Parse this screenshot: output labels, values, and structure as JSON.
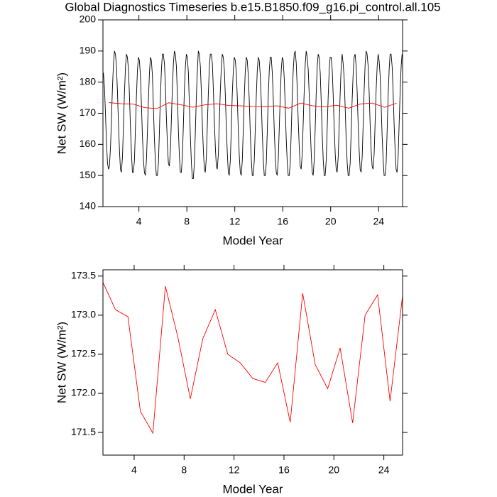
{
  "chart_data": [
    {
      "type": "line",
      "title": "Global Diagnostics Timeseries b.e15.B1850.f09_g16.pi_control.all.105",
      "xlabel": "Model Year",
      "ylabel": "Net SW (W/m²)",
      "xlim": [
        1,
        26
      ],
      "xticks": [
        4,
        8,
        12,
        16,
        20,
        24
      ],
      "ylim": [
        140,
        200
      ],
      "yticks": [
        140,
        150,
        160,
        170,
        180,
        190,
        200
      ],
      "series": [
        {
          "color": "#000000",
          "x": [
            1.04,
            1.13,
            1.21,
            1.29,
            1.38,
            1.46,
            1.54,
            1.63,
            1.71,
            1.79,
            1.88,
            1.96,
            2.04,
            2.13,
            2.21,
            2.29,
            2.38,
            2.46,
            2.54,
            2.63,
            2.71,
            2.79,
            2.88,
            2.96,
            3.04,
            3.13,
            3.21,
            3.29,
            3.38,
            3.46,
            3.54,
            3.63,
            3.71,
            3.79,
            3.88,
            3.96,
            4.04,
            4.13,
            4.21,
            4.29,
            4.38,
            4.46,
            4.54,
            4.63,
            4.71,
            4.79,
            4.88,
            4.96,
            5.04,
            5.13,
            5.21,
            5.29,
            5.38,
            5.46,
            5.54,
            5.63,
            5.71,
            5.79,
            5.88,
            5.96,
            6.04,
            6.13,
            6.21,
            6.29,
            6.38,
            6.46,
            6.54,
            6.63,
            6.71,
            6.79,
            6.88,
            6.96,
            7.04,
            7.13,
            7.21,
            7.29,
            7.38,
            7.46,
            7.54,
            7.63,
            7.71,
            7.79,
            7.88,
            7.96,
            8.04,
            8.13,
            8.21,
            8.29,
            8.38,
            8.46,
            8.54,
            8.63,
            8.71,
            8.79,
            8.88,
            8.96,
            9.04,
            9.13,
            9.21,
            9.29,
            9.38,
            9.46,
            9.54,
            9.63,
            9.71,
            9.79,
            9.88,
            9.96,
            10.04,
            10.13,
            10.21,
            10.29,
            10.38,
            10.46,
            10.54,
            10.63,
            10.71,
            10.79,
            10.88,
            10.96,
            11.04,
            11.13,
            11.21,
            11.29,
            11.38,
            11.46,
            11.54,
            11.63,
            11.71,
            11.79,
            11.88,
            11.96,
            12.04,
            12.13,
            12.21,
            12.29,
            12.38,
            12.46,
            12.54,
            12.63,
            12.71,
            12.79,
            12.88,
            12.96,
            13.04,
            13.13,
            13.21,
            13.29,
            13.38,
            13.46,
            13.54,
            13.63,
            13.71,
            13.79,
            13.88,
            13.96,
            14.04,
            14.13,
            14.21,
            14.29,
            14.38,
            14.46,
            14.54,
            14.63,
            14.71,
            14.79,
            14.88,
            14.96,
            15.04,
            15.13,
            15.21,
            15.29,
            15.38,
            15.46,
            15.54,
            15.63,
            15.71,
            15.79,
            15.88,
            15.96,
            16.04,
            16.13,
            16.21,
            16.29,
            16.38,
            16.46,
            16.54,
            16.63,
            16.71,
            16.79,
            16.88,
            16.96,
            17.04,
            17.13,
            17.21,
            17.29,
            17.38,
            17.46,
            17.54,
            17.63,
            17.71,
            17.79,
            17.88,
            17.96,
            18.04,
            18.13,
            18.21,
            18.29,
            18.38,
            18.46,
            18.54,
            18.63,
            18.71,
            18.79,
            18.88,
            18.96,
            19.04,
            19.13,
            19.21,
            19.29,
            19.38,
            19.46,
            19.54,
            19.63,
            19.71,
            19.79,
            19.88,
            19.96,
            20.04,
            20.13,
            20.21,
            20.29,
            20.38,
            20.46,
            20.54,
            20.63,
            20.71,
            20.79,
            20.88,
            20.96,
            21.04,
            21.13,
            21.21,
            21.29,
            21.38,
            21.46,
            21.54,
            21.63,
            21.71,
            21.79,
            21.88,
            21.96,
            22.04,
            22.13,
            22.21,
            22.29,
            22.38,
            22.46,
            22.54,
            22.63,
            22.71,
            22.79,
            22.88,
            22.96,
            23.04,
            23.13,
            23.21,
            23.29,
            23.38,
            23.46,
            23.54,
            23.63,
            23.71,
            23.79,
            23.88,
            23.96,
            24.04,
            24.13,
            24.21,
            24.29,
            24.38,
            24.46,
            24.54,
            24.63,
            24.71,
            24.79,
            24.88,
            24.96,
            25.04,
            25.13,
            25.21,
            25.29,
            25.38,
            25.46,
            25.54,
            25.63,
            25.71,
            25.79,
            25.88,
            25.96
          ],
          "values": [
            183,
            178,
            170,
            161,
            154,
            152,
            153,
            159,
            168,
            178,
            186,
            190,
            189,
            185,
            177,
            167,
            158,
            152,
            151,
            156,
            166,
            176,
            185,
            189,
            188,
            184,
            176,
            166,
            157,
            151,
            151,
            155,
            165,
            175,
            184,
            188,
            187,
            182,
            173,
            163,
            155,
            151,
            150,
            155,
            164,
            174,
            183,
            188,
            187,
            182,
            172,
            162,
            154,
            150,
            150,
            154,
            164,
            175,
            184,
            189,
            189,
            186,
            179,
            169,
            160,
            154,
            153,
            158,
            168,
            178,
            186,
            190,
            189,
            185,
            176,
            165,
            156,
            151,
            151,
            156,
            166,
            177,
            185,
            189,
            188,
            183,
            173,
            163,
            154,
            149,
            149,
            154,
            164,
            175,
            184,
            190,
            189,
            185,
            177,
            167,
            158,
            152,
            151,
            156,
            166,
            176,
            185,
            189,
            189,
            186,
            178,
            168,
            159,
            153,
            152,
            157,
            167,
            177,
            185,
            189,
            188,
            184,
            176,
            166,
            157,
            151,
            150,
            155,
            165,
            176,
            184,
            188,
            187,
            183,
            175,
            165,
            156,
            151,
            150,
            155,
            165,
            175,
            184,
            188,
            187,
            182,
            174,
            164,
            155,
            150,
            150,
            155,
            165,
            175,
            184,
            188,
            187,
            182,
            174,
            164,
            155,
            150,
            150,
            154,
            164,
            175,
            184,
            188,
            188,
            183,
            175,
            165,
            156,
            151,
            150,
            155,
            165,
            175,
            184,
            188,
            187,
            181,
            172,
            162,
            154,
            150,
            150,
            154,
            164,
            175,
            184,
            189,
            190,
            186,
            178,
            168,
            159,
            153,
            152,
            157,
            167,
            177,
            186,
            190,
            188,
            184,
            176,
            166,
            157,
            151,
            150,
            155,
            165,
            176,
            185,
            189,
            188,
            183,
            174,
            164,
            155,
            150,
            150,
            155,
            165,
            175,
            184,
            188,
            188,
            184,
            176,
            166,
            157,
            152,
            151,
            156,
            166,
            176,
            185,
            189,
            186,
            181,
            172,
            162,
            154,
            150,
            150,
            154,
            164,
            174,
            183,
            188,
            189,
            185,
            177,
            167,
            158,
            152,
            151,
            156,
            166,
            177,
            186,
            190,
            189,
            185,
            177,
            167,
            158,
            153,
            152,
            157,
            167,
            177,
            185,
            189,
            187,
            182,
            173,
            163,
            155,
            150,
            150,
            154,
            164,
            175,
            184,
            189,
            189,
            185,
            177,
            167,
            158,
            152,
            151,
            156,
            166,
            176,
            185,
            189
          ]
        },
        {
          "color": "#ff0000",
          "x": [
            1.5,
            2.5,
            3.5,
            4.5,
            5.5,
            6.5,
            7.5,
            8.5,
            9.5,
            10.5,
            11.5,
            12.5,
            13.5,
            14.5,
            15.5,
            16.5,
            17.5,
            18.5,
            19.5,
            20.5,
            21.5,
            22.5,
            23.5,
            24.5,
            25.5
          ],
          "values": [
            173.42,
            173.07,
            172.98,
            171.77,
            171.49,
            173.37,
            172.72,
            171.93,
            172.7,
            173.07,
            172.5,
            172.39,
            172.19,
            172.14,
            172.39,
            171.63,
            173.28,
            172.37,
            172.06,
            172.58,
            171.62,
            173.0,
            173.26,
            171.9,
            173.25
          ]
        }
      ]
    },
    {
      "type": "line",
      "xlabel": "Model Year",
      "ylabel": "Net SW (W/m²)",
      "xlim": [
        1.5,
        25.5
      ],
      "xticks": [
        4,
        8,
        12,
        16,
        20,
        24
      ],
      "ylim": [
        171.21,
        173.58
      ],
      "yticks": [
        171.5,
        {
          "value": 172,
          "label": "172.0"
        },
        172.5,
        {
          "value": 173,
          "label": "173.0"
        },
        173.5
      ],
      "series": [
        {
          "color": "#ff0000",
          "x": [
            1.5,
            2.5,
            3.5,
            4.5,
            5.5,
            6.5,
            7.5,
            8.5,
            9.5,
            10.5,
            11.5,
            12.5,
            13.5,
            14.5,
            15.5,
            16.5,
            17.5,
            18.5,
            19.5,
            20.5,
            21.5,
            22.5,
            23.5,
            24.5,
            25.5
          ],
          "values": [
            173.42,
            173.07,
            172.98,
            171.77,
            171.49,
            173.37,
            172.72,
            171.93,
            172.7,
            173.07,
            172.5,
            172.39,
            172.19,
            172.14,
            172.39,
            171.63,
            173.28,
            172.37,
            172.06,
            172.58,
            171.62,
            173.0,
            173.26,
            171.9,
            173.25
          ]
        }
      ]
    }
  ]
}
